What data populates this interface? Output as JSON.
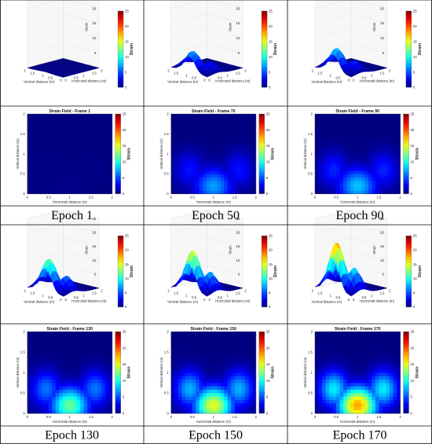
{
  "figure": {
    "epochs": [
      "Epoch 1",
      "Epoch 50",
      "Epoch 90",
      "Epoch 130",
      "Epoch 150",
      "Epoch 170"
    ]
  },
  "chart_data": [
    {
      "type": "surface-3d",
      "title": "Strain Field - Frame 1",
      "xlabel": "Vertical distance (m)",
      "ylabel": "Horizontal distance (m)",
      "zlabel": "Strain",
      "zlim": [
        0,
        25
      ],
      "x_ticks": [
        "0",
        "0.5",
        "1",
        "1.5",
        "2"
      ],
      "y_ticks": [
        "0",
        "0.5",
        "1",
        "1.5",
        "2"
      ],
      "z_ticks": [
        "0",
        "5",
        "10",
        "15",
        "20",
        "25"
      ],
      "colorbar": {
        "label": "Strain",
        "ticks": [
          "0",
          "5",
          "10",
          "15",
          "20",
          "25"
        ],
        "colormap": "jet"
      },
      "peak_strain": 0.3
    },
    {
      "type": "surface-3d",
      "title": "Strain Field - Frame 70",
      "xlabel": "Vertical distance (m)",
      "ylabel": "Horizontal distance (m)",
      "zlabel": "Strain",
      "zlim": [
        0,
        25
      ],
      "x_ticks": [
        "0",
        "0.5",
        "1",
        "1.5",
        "2"
      ],
      "y_ticks": [
        "0",
        "0.5",
        "1",
        "1.5",
        "2"
      ],
      "z_ticks": [
        "0",
        "5",
        "10",
        "15",
        "20",
        "25"
      ],
      "colorbar": {
        "label": "Strain",
        "ticks": [
          "0",
          "5",
          "10",
          "15",
          "20",
          "25"
        ],
        "colormap": "jet"
      },
      "peak_strain": 7
    },
    {
      "type": "surface-3d",
      "title": "Strain Field - Frame 90",
      "xlabel": "Vertical distance (m)",
      "ylabel": "Horizontal distance (m)",
      "zlabel": "Strain",
      "zlim": [
        0,
        25
      ],
      "x_ticks": [
        "0",
        "0.5",
        "1",
        "1.5",
        "2"
      ],
      "y_ticks": [
        "0",
        "0.5",
        "1",
        "1.5",
        "2"
      ],
      "z_ticks": [
        "0",
        "5",
        "10",
        "15",
        "20",
        "25"
      ],
      "colorbar": {
        "label": "Strain",
        "ticks": [
          "0",
          "5",
          "10",
          "15",
          "20",
          "25"
        ],
        "colormap": "jet"
      },
      "peak_strain": 8
    },
    {
      "type": "heatmap",
      "title": "Strain Field - Frame 1",
      "xlabel": "Horizontal distance (m)",
      "ylabel": "Vertical distance (m)",
      "x_ticks": [
        "0",
        "0.5",
        "1",
        "1.5",
        "2"
      ],
      "y_ticks": [
        "0",
        "0.5",
        "1",
        "1.5",
        "2"
      ],
      "colorbar": {
        "label": "Strain",
        "ticks": [
          "0",
          "5",
          "10",
          "15",
          "20",
          "25"
        ],
        "colormap": "jet"
      },
      "peak_strain": 0.3
    },
    {
      "type": "heatmap",
      "title": "Strain Field - Frame 70",
      "xlabel": "Horizontal distance (m)",
      "ylabel": "Vertical distance (m)",
      "x_ticks": [
        "0",
        "0.5",
        "1",
        "1.5",
        "2"
      ],
      "y_ticks": [
        "0",
        "0.5",
        "1",
        "1.5",
        "2"
      ],
      "colorbar": {
        "label": "Strain",
        "ticks": [
          "0",
          "5",
          "10",
          "15",
          "20",
          "25"
        ],
        "colormap": "jet"
      },
      "peak_strain": 7
    },
    {
      "type": "heatmap",
      "title": "Strain Field - Frame 90",
      "xlabel": "Horizontal distance (m)",
      "ylabel": "Vertical distance (m)",
      "x_ticks": [
        "0",
        "0.5",
        "1",
        "1.5",
        "2"
      ],
      "y_ticks": [
        "0",
        "0.5",
        "1",
        "1.5",
        "2"
      ],
      "colorbar": {
        "label": "Strain",
        "ticks": [
          "0",
          "5",
          "10",
          "15",
          "20",
          "25"
        ],
        "colormap": "jet"
      },
      "peak_strain": 8
    },
    {
      "type": "surface-3d",
      "title": "Strain Field - Frame 130",
      "xlabel": "Vertical distance (m)",
      "ylabel": "Horizontal distance (m)",
      "zlabel": "Strain",
      "zlim": [
        0,
        25
      ],
      "x_ticks": [
        "0",
        "0.5",
        "1",
        "1.5",
        "2"
      ],
      "y_ticks": [
        "0",
        "0.5",
        "1",
        "1.5",
        "2"
      ],
      "z_ticks": [
        "0",
        "5",
        "10",
        "15",
        "20",
        "25"
      ],
      "colorbar": {
        "label": "Strain",
        "ticks": [
          "0",
          "5",
          "10",
          "15",
          "20",
          "25"
        ],
        "colormap": "jet"
      },
      "peak_strain": 12
    },
    {
      "type": "surface-3d",
      "title": "Strain Field - Frame 150",
      "xlabel": "Vertical distance (m)",
      "ylabel": "Horizontal distance (m)",
      "zlabel": "Strain",
      "zlim": [
        0,
        25
      ],
      "x_ticks": [
        "0",
        "0.5",
        "1",
        "1.5",
        "2"
      ],
      "y_ticks": [
        "0",
        "0.5",
        "1",
        "1.5",
        "2"
      ],
      "z_ticks": [
        "0",
        "5",
        "10",
        "15",
        "20",
        "25"
      ],
      "colorbar": {
        "label": "Strain",
        "ticks": [
          "0",
          "5",
          "10",
          "15",
          "20",
          "25"
        ],
        "colormap": "jet"
      },
      "peak_strain": 15
    },
    {
      "type": "surface-3d",
      "title": "Strain Field - Frame 170",
      "xlabel": "Vertical distance (m)",
      "ylabel": "Horizontal distance (m)",
      "zlabel": "Strain",
      "zlim": [
        0,
        25
      ],
      "x_ticks": [
        "0",
        "0.5",
        "1",
        "1.5",
        "2"
      ],
      "y_ticks": [
        "0",
        "0.5",
        "1",
        "1.5",
        "2"
      ],
      "z_ticks": [
        "0",
        "5",
        "10",
        "15",
        "20",
        "25"
      ],
      "colorbar": {
        "label": "Strain",
        "ticks": [
          "0",
          "5",
          "10",
          "15",
          "20",
          "25"
        ],
        "colormap": "jet"
      },
      "peak_strain": 18
    },
    {
      "type": "heatmap",
      "title": "Strain Field - Frame 130",
      "xlabel": "Horizontal distance (m)",
      "ylabel": "Vertical distance (m)",
      "x_ticks": [
        "0",
        "0.5",
        "1",
        "1.5",
        "2"
      ],
      "y_ticks": [
        "0",
        "0.5",
        "1",
        "1.5",
        "2"
      ],
      "colorbar": {
        "label": "Strain",
        "ticks": [
          "0",
          "5",
          "10",
          "15",
          "20",
          "25"
        ],
        "colormap": "jet"
      },
      "peak_strain": 12
    },
    {
      "type": "heatmap",
      "title": "Strain Field - Frame 150",
      "xlabel": "Horizontal distance (m)",
      "ylabel": "Vertical distance (m)",
      "x_ticks": [
        "0",
        "0.5",
        "1",
        "1.5",
        "2"
      ],
      "y_ticks": [
        "0",
        "0.5",
        "1",
        "1.5",
        "2"
      ],
      "colorbar": {
        "label": "Strain",
        "ticks": [
          "0",
          "5",
          "10",
          "15",
          "20",
          "25"
        ],
        "colormap": "jet"
      },
      "peak_strain": 15
    },
    {
      "type": "heatmap",
      "title": "Strain Field - Frame 170",
      "xlabel": "Horizontal distance (m)",
      "ylabel": "Vertical distance (m)",
      "x_ticks": [
        "0",
        "0.5",
        "1",
        "1.5",
        "2"
      ],
      "y_ticks": [
        "0",
        "0.5",
        "1",
        "1.5",
        "2"
      ],
      "colorbar": {
        "label": "Strain",
        "ticks": [
          "0",
          "5",
          "10",
          "15",
          "20",
          "25"
        ],
        "colormap": "jet"
      },
      "peak_strain": 18
    }
  ]
}
